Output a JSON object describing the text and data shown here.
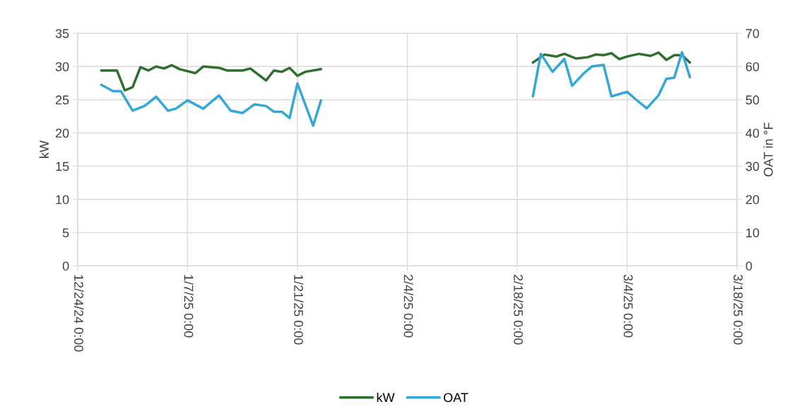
{
  "chart_data": {
    "type": "line",
    "ylabel": "kW",
    "y2label": "OAT in °F",
    "grid": true,
    "legend": "bottom",
    "marker": "none",
    "line_style": "solid",
    "xlim": [
      "2024-12-24",
      "2025-03-18"
    ],
    "xticks": [
      {
        "value": "2024-12-24",
        "label": "12/24/24 0:00"
      },
      {
        "value": "2025-01-07",
        "label": "1/7/25 0:00"
      },
      {
        "value": "2025-01-21",
        "label": "1/21/25 0:00"
      },
      {
        "value": "2025-02-04",
        "label": "2/4/25 0:00"
      },
      {
        "value": "2025-02-18",
        "label": "2/18/25 0:00"
      },
      {
        "value": "2025-03-04",
        "label": "3/4/25 0:00"
      },
      {
        "value": "2025-03-18",
        "label": "3/18/25 0:00"
      }
    ],
    "ylim": [
      0,
      35
    ],
    "yticks": [
      0,
      5,
      10,
      15,
      20,
      25,
      30,
      35
    ],
    "y2lim": [
      0,
      70
    ],
    "y2ticks": [
      0,
      10,
      20,
      30,
      40,
      50,
      60,
      70
    ],
    "series": [
      {
        "name": "kW",
        "color": "#2e6f2e",
        "x": [
          "2024-12-27",
          "2024-12-29",
          "2024-12-30",
          "2024-12-31",
          "2025-01-01",
          "2025-01-02",
          "2025-01-03",
          "2025-01-04",
          "2025-01-05",
          "2025-01-06",
          "2025-01-08",
          "2025-01-09",
          "2025-01-11",
          "2025-01-12",
          "2025-01-14",
          "2025-01-15",
          "2025-01-17",
          "2025-01-18",
          "2025-01-19",
          "2025-01-20",
          "2025-01-21",
          "2025-01-22",
          "2025-01-24",
          "2025-02-05",
          "2025-02-20",
          "2025-02-21T12:00",
          "2025-02-23",
          "2025-02-24",
          "2025-02-25T12:00",
          "2025-02-27",
          "2025-02-28",
          "2025-03-01",
          "2025-03-02",
          "2025-03-03",
          "2025-03-04",
          "2025-03-05T12:00",
          "2025-03-07",
          "2025-03-08",
          "2025-03-09",
          "2025-03-10",
          "2025-03-11",
          "2025-03-12"
        ],
        "values": [
          29.4,
          29.4,
          26.4,
          26.9,
          29.9,
          29.4,
          30.0,
          29.7,
          30.2,
          29.6,
          29.0,
          30.0,
          29.8,
          29.4,
          29.4,
          29.7,
          27.9,
          29.4,
          29.2,
          29.8,
          28.6,
          29.2,
          29.6,
          null,
          30.6,
          31.8,
          31.5,
          31.9,
          31.2,
          31.4,
          31.8,
          31.7,
          32.0,
          31.1,
          31.5,
          31.9,
          31.6,
          32.1,
          31.0,
          31.7,
          31.7,
          30.6
        ]
      },
      {
        "name": "OAT",
        "color": "#35a7d6",
        "axis": "y2",
        "x": [
          "2024-12-27",
          "2024-12-28T12:00",
          "2024-12-29T12:00",
          "2024-12-31",
          "2025-01-01T12:00",
          "2025-01-02",
          "2025-01-03",
          "2025-01-04T12:00",
          "2025-01-05T12:00",
          "2025-01-07",
          "2025-01-09",
          "2025-01-11",
          "2025-01-12T12:00",
          "2025-01-14",
          "2025-01-15T12:00",
          "2025-01-17",
          "2025-01-18",
          "2025-01-19",
          "2025-01-20",
          "2025-01-21",
          "2025-01-23",
          "2025-01-24",
          "2025-02-05",
          "2025-02-20",
          "2025-02-21",
          "2025-02-22T12:00",
          "2025-02-24",
          "2025-02-25",
          "2025-02-26T12:00",
          "2025-02-27T12:00",
          "2025-03-01",
          "2025-03-02",
          "2025-03-04",
          "2025-03-05",
          "2025-03-06T12:00",
          "2025-03-08",
          "2025-03-09",
          "2025-03-10",
          "2025-03-11",
          "2025-03-12"
        ],
        "values": [
          54.5,
          52.6,
          52.6,
          46.7,
          48.1,
          49.0,
          50.9,
          46.7,
          47.3,
          49.8,
          47.3,
          51.3,
          46.7,
          46.0,
          48.6,
          48.1,
          46.4,
          46.4,
          44.5,
          54.9,
          42.2,
          49.8,
          null,
          51.0,
          63.8,
          58.4,
          62.3,
          54.2,
          58.0,
          60.0,
          60.5,
          51.0,
          52.4,
          50.3,
          47.4,
          51.3,
          56.3,
          56.6,
          64.3,
          56.8
        ]
      }
    ]
  }
}
